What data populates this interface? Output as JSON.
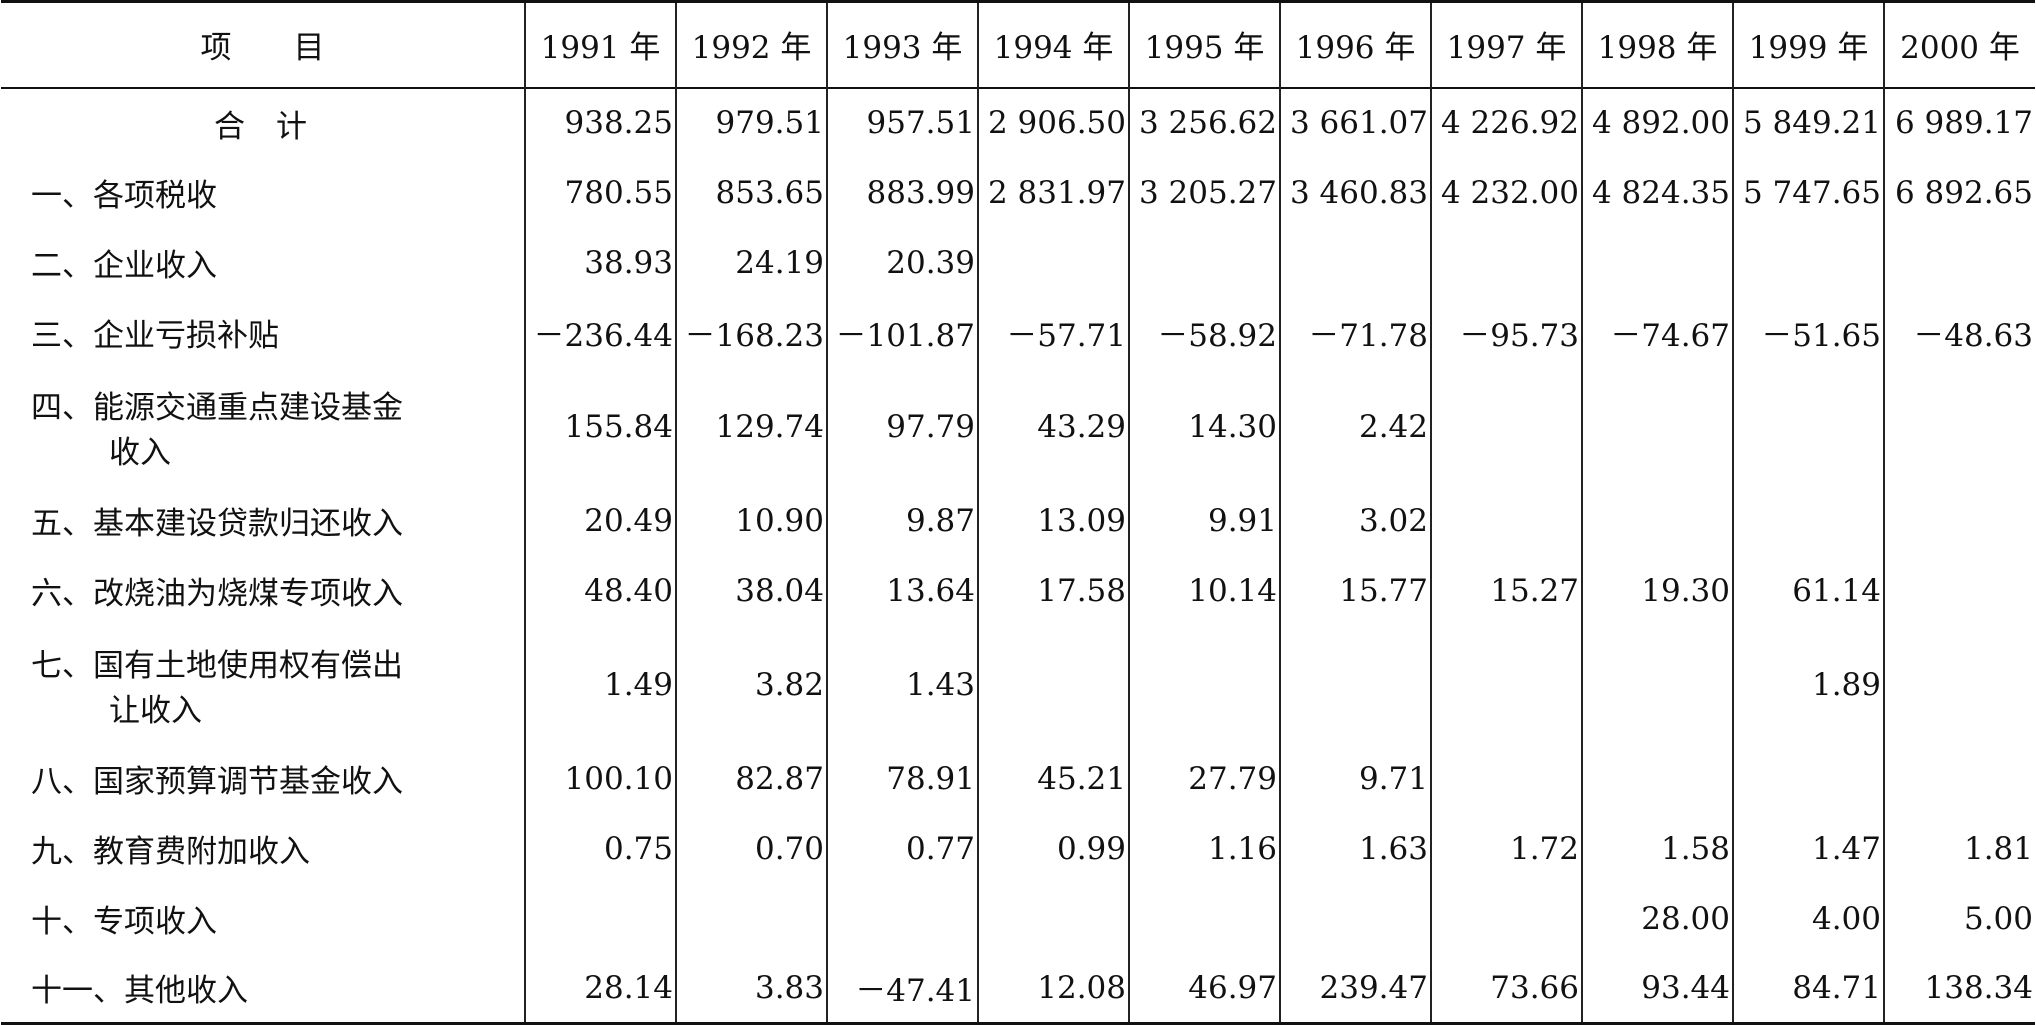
{
  "table": {
    "header": {
      "item": "项　　目",
      "years": [
        "1991 年",
        "1992 年",
        "1993 年",
        "1994 年",
        "1995 年",
        "1996 年",
        "1997 年",
        "1998 年",
        "1999 年",
        "2000 年"
      ]
    },
    "rows": [
      {
        "label": [
          "合　计"
        ],
        "values": [
          "938.25",
          "979.51",
          "957.51",
          "2 906.50",
          "3 256.62",
          "3 661.07",
          "4 226.92",
          "4 892.00",
          "5 849.21",
          "6 989.17"
        ]
      },
      {
        "label": [
          "一、各项税收"
        ],
        "values": [
          "780.55",
          "853.65",
          "883.99",
          "2 831.97",
          "3 205.27",
          "3 460.83",
          "4 232.00",
          "4 824.35",
          "5 747.65",
          "6 892.65"
        ]
      },
      {
        "label": [
          "二、企业收入"
        ],
        "values": [
          "38.93",
          "24.19",
          "20.39",
          null,
          null,
          null,
          null,
          null,
          null,
          null
        ]
      },
      {
        "label": [
          "三、企业亏损补贴"
        ],
        "values": [
          "－236.44",
          "－168.23",
          "－101.87",
          "－57.71",
          "－58.92",
          "－71.78",
          "－95.73",
          "－74.67",
          "－51.65",
          "－48.63"
        ]
      },
      {
        "label": [
          "四、能源交通重点建设基金",
          "收入"
        ],
        "values": [
          "155.84",
          "129.74",
          "97.79",
          "43.29",
          "14.30",
          "2.42",
          null,
          null,
          null,
          null
        ]
      },
      {
        "label": [
          "五、基本建设贷款归还收入"
        ],
        "values": [
          "20.49",
          "10.90",
          "9.87",
          "13.09",
          "9.91",
          "3.02",
          null,
          null,
          null,
          null
        ]
      },
      {
        "label": [
          "六、改烧油为烧煤专项收入"
        ],
        "values": [
          "48.40",
          "38.04",
          "13.64",
          "17.58",
          "10.14",
          "15.77",
          "15.27",
          "19.30",
          "61.14",
          null
        ]
      },
      {
        "label": [
          "七、国有土地使用权有偿出",
          "让收入"
        ],
        "values": [
          "1.49",
          "3.82",
          "1.43",
          null,
          null,
          null,
          null,
          null,
          "1.89",
          null
        ]
      },
      {
        "label": [
          "八、国家预算调节基金收入"
        ],
        "values": [
          "100.10",
          "82.87",
          "78.91",
          "45.21",
          "27.79",
          "9.71",
          null,
          null,
          null,
          null
        ]
      },
      {
        "label": [
          "九、教育费附加收入"
        ],
        "values": [
          "0.75",
          "0.70",
          "0.77",
          "0.99",
          "1.16",
          "1.63",
          "1.72",
          "1.58",
          "1.47",
          "1.81"
        ]
      },
      {
        "label": [
          "十、专项收入"
        ],
        "values": [
          null,
          null,
          null,
          null,
          null,
          null,
          null,
          "28.00",
          "4.00",
          "5.00"
        ]
      },
      {
        "label": [
          "十一、其他收入"
        ],
        "values": [
          "28.14",
          "3.83",
          "－47.41",
          "12.08",
          "46.97",
          "239.47",
          "73.66",
          "93.44",
          "84.71",
          "138.34"
        ]
      }
    ]
  }
}
